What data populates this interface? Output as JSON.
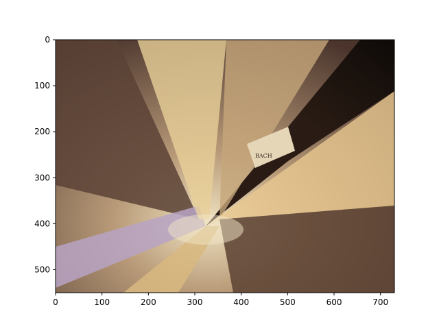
{
  "chart_data": {
    "type": "heatmap",
    "title": "",
    "xlabel": "",
    "ylabel": "",
    "xlim": [
      0,
      730
    ],
    "ylim": [
      550,
      0
    ],
    "x_ticks": [
      0,
      100,
      200,
      300,
      400,
      500,
      600,
      700
    ],
    "y_ticks": [
      0,
      100,
      200,
      300,
      400,
      500
    ],
    "grid": false,
    "legend": "none",
    "image": {
      "content": "radially distorted photograph (zoom-burst effect) with warm tan, brown and lavender streaks converging near x≈300, y≈380",
      "background_colors": [
        "#1a120c",
        "#6b4a3a",
        "#c8a070",
        "#e8d0a0",
        "#b0a0c8",
        "#f0e0b8"
      ],
      "visible_fragment_text": "BACH"
    }
  }
}
